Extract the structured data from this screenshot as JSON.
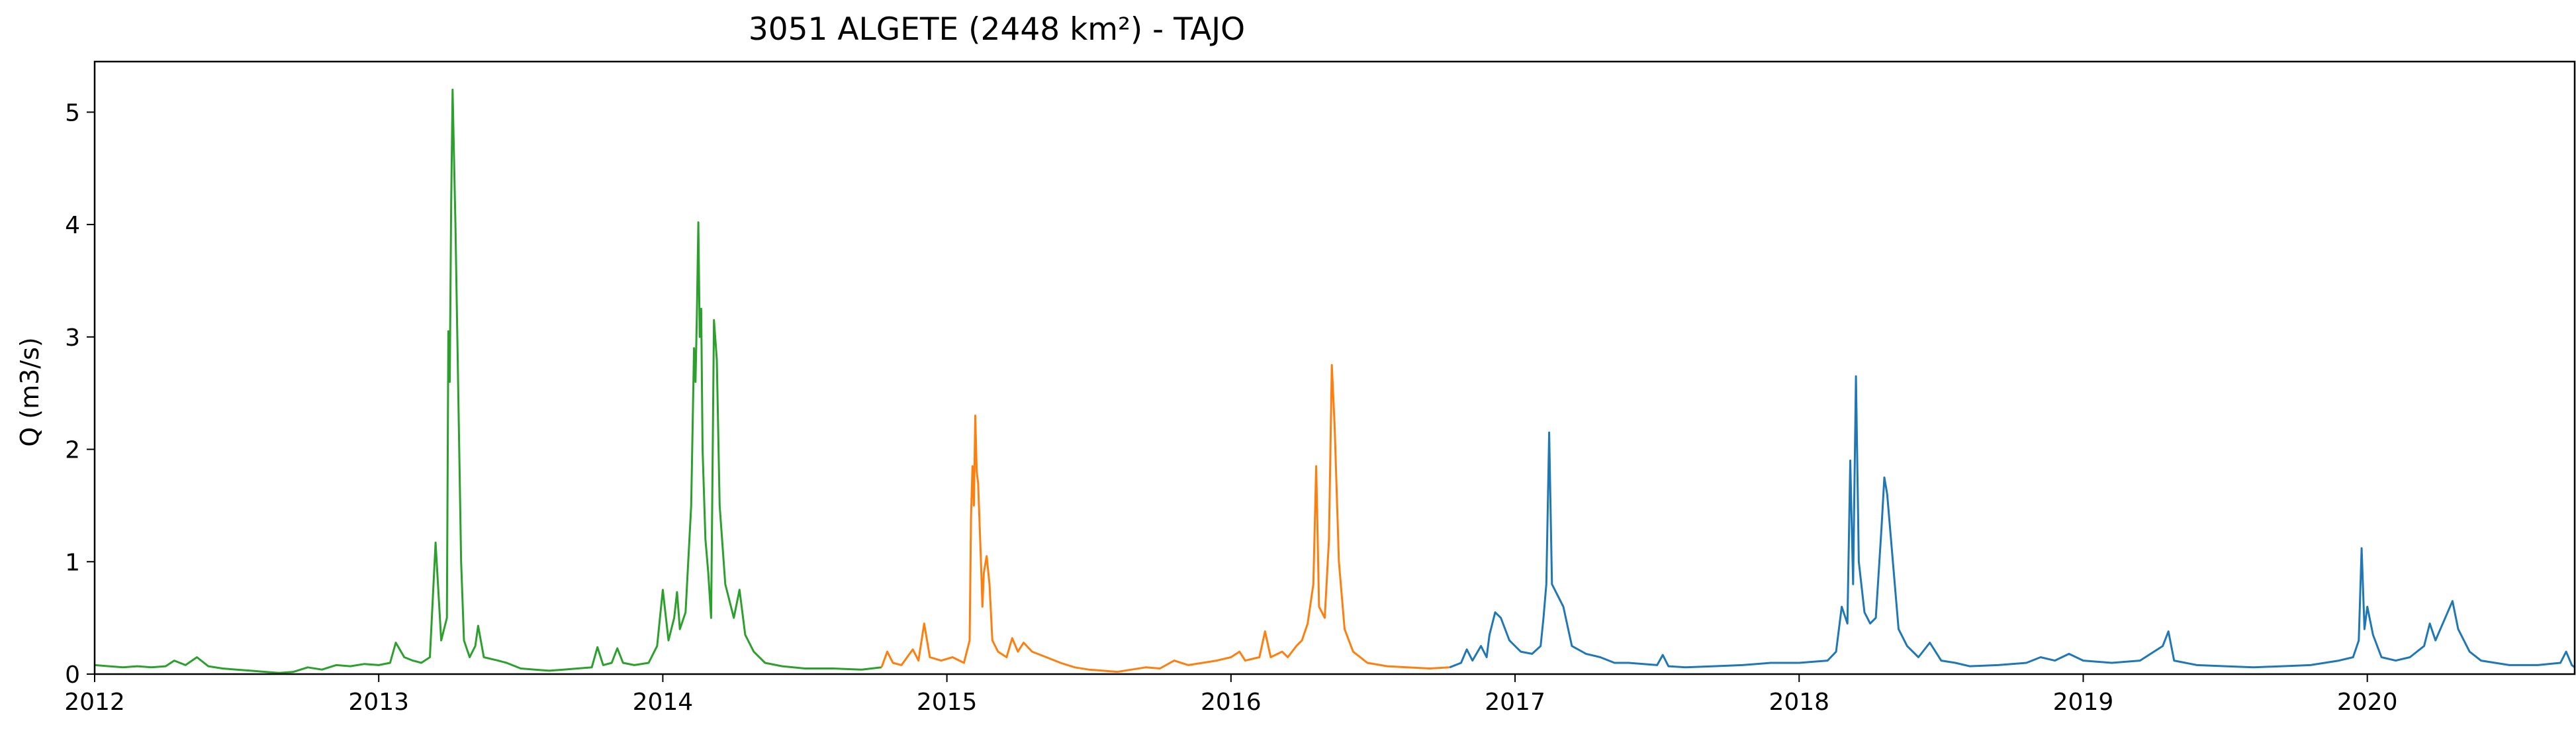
{
  "chart_data": {
    "type": "line",
    "title": "3051 ALGETE (2448 km²) - TAJO",
    "xlabel": "",
    "ylabel": "Q (m3/s)",
    "xlim": [
      2012.0,
      2020.73
    ],
    "ylim": [
      0,
      5.45
    ],
    "x_ticks": [
      2012,
      2013,
      2014,
      2015,
      2016,
      2017,
      2018,
      2019,
      2020
    ],
    "y_ticks": [
      0,
      1,
      2,
      3,
      4,
      5
    ],
    "grid": false,
    "legend": "none",
    "series": [
      {
        "color": "#2ca02c",
        "points": [
          [
            2012.0,
            0.08
          ],
          [
            2012.05,
            0.07
          ],
          [
            2012.1,
            0.06
          ],
          [
            2012.15,
            0.07
          ],
          [
            2012.2,
            0.06
          ],
          [
            2012.25,
            0.07
          ],
          [
            2012.28,
            0.12
          ],
          [
            2012.32,
            0.08
          ],
          [
            2012.36,
            0.15
          ],
          [
            2012.4,
            0.07
          ],
          [
            2012.45,
            0.05
          ],
          [
            2012.5,
            0.04
          ],
          [
            2012.55,
            0.03
          ],
          [
            2012.6,
            0.02
          ],
          [
            2012.65,
            0.01
          ],
          [
            2012.7,
            0.02
          ],
          [
            2012.75,
            0.06
          ],
          [
            2012.8,
            0.04
          ],
          [
            2012.85,
            0.08
          ],
          [
            2012.9,
            0.07
          ],
          [
            2012.95,
            0.09
          ],
          [
            2013.0,
            0.08
          ],
          [
            2013.04,
            0.1
          ],
          [
            2013.06,
            0.28
          ],
          [
            2013.09,
            0.15
          ],
          [
            2013.12,
            0.12
          ],
          [
            2013.15,
            0.1
          ],
          [
            2013.18,
            0.15
          ],
          [
            2013.2,
            1.17
          ],
          [
            2013.22,
            0.3
          ],
          [
            2013.24,
            0.5
          ],
          [
            2013.245,
            3.05
          ],
          [
            2013.25,
            2.6
          ],
          [
            2013.255,
            4.2
          ],
          [
            2013.26,
            5.2
          ],
          [
            2013.27,
            4.0
          ],
          [
            2013.28,
            2.5
          ],
          [
            2013.29,
            1.0
          ],
          [
            2013.3,
            0.3
          ],
          [
            2013.32,
            0.15
          ],
          [
            2013.34,
            0.25
          ],
          [
            2013.35,
            0.43
          ],
          [
            2013.37,
            0.15
          ],
          [
            2013.42,
            0.12
          ],
          [
            2013.45,
            0.1
          ],
          [
            2013.5,
            0.05
          ],
          [
            2013.55,
            0.04
          ],
          [
            2013.6,
            0.03
          ],
          [
            2013.65,
            0.04
          ],
          [
            2013.7,
            0.05
          ],
          [
            2013.75,
            0.06
          ],
          [
            2013.77,
            0.24
          ],
          [
            2013.79,
            0.08
          ],
          [
            2013.82,
            0.1
          ],
          [
            2013.84,
            0.23
          ],
          [
            2013.86,
            0.1
          ],
          [
            2013.9,
            0.08
          ],
          [
            2013.95,
            0.1
          ],
          [
            2013.98,
            0.25
          ],
          [
            2014.0,
            0.75
          ],
          [
            2014.02,
            0.3
          ],
          [
            2014.04,
            0.5
          ],
          [
            2014.05,
            0.73
          ],
          [
            2014.06,
            0.4
          ],
          [
            2014.08,
            0.55
          ],
          [
            2014.1,
            1.5
          ],
          [
            2014.11,
            2.9
          ],
          [
            2014.115,
            2.6
          ],
          [
            2014.12,
            3.2
          ],
          [
            2014.125,
            4.02
          ],
          [
            2014.13,
            3.0
          ],
          [
            2014.135,
            3.25
          ],
          [
            2014.14,
            2.0
          ],
          [
            2014.15,
            1.2
          ],
          [
            2014.16,
            0.9
          ],
          [
            2014.17,
            0.5
          ],
          [
            2014.18,
            3.15
          ],
          [
            2014.19,
            2.8
          ],
          [
            2014.2,
            1.5
          ],
          [
            2014.22,
            0.8
          ],
          [
            2014.25,
            0.5
          ],
          [
            2014.27,
            0.75
          ],
          [
            2014.29,
            0.35
          ],
          [
            2014.32,
            0.2
          ],
          [
            2014.36,
            0.1
          ],
          [
            2014.42,
            0.07
          ],
          [
            2014.5,
            0.05
          ],
          [
            2014.6,
            0.05
          ],
          [
            2014.7,
            0.04
          ],
          [
            2014.77,
            0.06
          ]
        ]
      },
      {
        "color": "#ff7f0e",
        "points": [
          [
            2014.77,
            0.06
          ],
          [
            2014.79,
            0.2
          ],
          [
            2014.81,
            0.1
          ],
          [
            2014.84,
            0.08
          ],
          [
            2014.88,
            0.22
          ],
          [
            2014.9,
            0.12
          ],
          [
            2014.92,
            0.45
          ],
          [
            2014.94,
            0.15
          ],
          [
            2014.98,
            0.12
          ],
          [
            2015.02,
            0.15
          ],
          [
            2015.06,
            0.1
          ],
          [
            2015.08,
            0.3
          ],
          [
            2015.085,
            1.4
          ],
          [
            2015.09,
            1.85
          ],
          [
            2015.095,
            1.5
          ],
          [
            2015.1,
            2.3
          ],
          [
            2015.105,
            1.8
          ],
          [
            2015.11,
            1.7
          ],
          [
            2015.12,
            1.0
          ],
          [
            2015.125,
            0.6
          ],
          [
            2015.13,
            0.9
          ],
          [
            2015.14,
            1.05
          ],
          [
            2015.15,
            0.8
          ],
          [
            2015.16,
            0.3
          ],
          [
            2015.18,
            0.2
          ],
          [
            2015.21,
            0.15
          ],
          [
            2015.23,
            0.32
          ],
          [
            2015.25,
            0.2
          ],
          [
            2015.27,
            0.28
          ],
          [
            2015.3,
            0.2
          ],
          [
            2015.35,
            0.15
          ],
          [
            2015.4,
            0.1
          ],
          [
            2015.45,
            0.06
          ],
          [
            2015.5,
            0.04
          ],
          [
            2015.55,
            0.03
          ],
          [
            2015.6,
            0.02
          ],
          [
            2015.65,
            0.04
          ],
          [
            2015.7,
            0.06
          ],
          [
            2015.75,
            0.05
          ],
          [
            2015.8,
            0.12
          ],
          [
            2015.85,
            0.08
          ],
          [
            2015.9,
            0.1
          ],
          [
            2015.95,
            0.12
          ],
          [
            2016.0,
            0.15
          ],
          [
            2016.03,
            0.2
          ],
          [
            2016.05,
            0.12
          ],
          [
            2016.1,
            0.15
          ],
          [
            2016.12,
            0.38
          ],
          [
            2016.14,
            0.15
          ],
          [
            2016.18,
            0.2
          ],
          [
            2016.2,
            0.15
          ],
          [
            2016.23,
            0.25
          ],
          [
            2016.25,
            0.3
          ],
          [
            2016.27,
            0.45
          ],
          [
            2016.29,
            0.8
          ],
          [
            2016.3,
            1.85
          ],
          [
            2016.31,
            0.6
          ],
          [
            2016.33,
            0.5
          ],
          [
            2016.345,
            1.2
          ],
          [
            2016.355,
            2.75
          ],
          [
            2016.365,
            2.2
          ],
          [
            2016.38,
            1.0
          ],
          [
            2016.4,
            0.4
          ],
          [
            2016.43,
            0.2
          ],
          [
            2016.48,
            0.1
          ],
          [
            2016.55,
            0.07
          ],
          [
            2016.62,
            0.06
          ],
          [
            2016.7,
            0.05
          ],
          [
            2016.77,
            0.06
          ]
        ]
      },
      {
        "color": "#1f77b4",
        "points": [
          [
            2016.77,
            0.06
          ],
          [
            2016.81,
            0.1
          ],
          [
            2016.83,
            0.22
          ],
          [
            2016.85,
            0.12
          ],
          [
            2016.88,
            0.25
          ],
          [
            2016.9,
            0.15
          ],
          [
            2016.91,
            0.35
          ],
          [
            2016.93,
            0.55
          ],
          [
            2016.95,
            0.5
          ],
          [
            2016.98,
            0.3
          ],
          [
            2017.02,
            0.2
          ],
          [
            2017.06,
            0.18
          ],
          [
            2017.09,
            0.25
          ],
          [
            2017.1,
            0.5
          ],
          [
            2017.11,
            0.8
          ],
          [
            2017.12,
            2.15
          ],
          [
            2017.13,
            0.8
          ],
          [
            2017.15,
            0.7
          ],
          [
            2017.17,
            0.6
          ],
          [
            2017.2,
            0.25
          ],
          [
            2017.25,
            0.18
          ],
          [
            2017.3,
            0.15
          ],
          [
            2017.35,
            0.1
          ],
          [
            2017.4,
            0.1
          ],
          [
            2017.5,
            0.08
          ],
          [
            2017.52,
            0.17
          ],
          [
            2017.54,
            0.07
          ],
          [
            2017.6,
            0.06
          ],
          [
            2017.7,
            0.07
          ],
          [
            2017.8,
            0.08
          ],
          [
            2017.9,
            0.1
          ],
          [
            2018.0,
            0.1
          ],
          [
            2018.1,
            0.12
          ],
          [
            2018.13,
            0.2
          ],
          [
            2018.15,
            0.6
          ],
          [
            2018.17,
            0.45
          ],
          [
            2018.18,
            1.9
          ],
          [
            2018.19,
            0.8
          ],
          [
            2018.2,
            2.65
          ],
          [
            2018.21,
            1.0
          ],
          [
            2018.23,
            0.55
          ],
          [
            2018.25,
            0.45
          ],
          [
            2018.27,
            0.5
          ],
          [
            2018.29,
            1.3
          ],
          [
            2018.3,
            1.75
          ],
          [
            2018.31,
            1.6
          ],
          [
            2018.33,
            1.0
          ],
          [
            2018.35,
            0.4
          ],
          [
            2018.38,
            0.25
          ],
          [
            2018.42,
            0.15
          ],
          [
            2018.46,
            0.28
          ],
          [
            2018.5,
            0.12
          ],
          [
            2018.55,
            0.1
          ],
          [
            2018.6,
            0.07
          ],
          [
            2018.7,
            0.08
          ],
          [
            2018.8,
            0.1
          ],
          [
            2018.85,
            0.15
          ],
          [
            2018.9,
            0.12
          ],
          [
            2018.95,
            0.18
          ],
          [
            2019.0,
            0.12
          ],
          [
            2019.1,
            0.1
          ],
          [
            2019.2,
            0.12
          ],
          [
            2019.28,
            0.25
          ],
          [
            2019.3,
            0.38
          ],
          [
            2019.32,
            0.12
          ],
          [
            2019.4,
            0.08
          ],
          [
            2019.5,
            0.07
          ],
          [
            2019.6,
            0.06
          ],
          [
            2019.7,
            0.07
          ],
          [
            2019.8,
            0.08
          ],
          [
            2019.9,
            0.12
          ],
          [
            2019.95,
            0.15
          ],
          [
            2019.97,
            0.3
          ],
          [
            2019.98,
            1.12
          ],
          [
            2019.99,
            0.4
          ],
          [
            2020.0,
            0.6
          ],
          [
            2020.02,
            0.35
          ],
          [
            2020.05,
            0.15
          ],
          [
            2020.1,
            0.12
          ],
          [
            2020.15,
            0.15
          ],
          [
            2020.2,
            0.25
          ],
          [
            2020.22,
            0.45
          ],
          [
            2020.24,
            0.3
          ],
          [
            2020.3,
            0.65
          ],
          [
            2020.32,
            0.4
          ],
          [
            2020.34,
            0.3
          ],
          [
            2020.36,
            0.2
          ],
          [
            2020.4,
            0.12
          ],
          [
            2020.5,
            0.08
          ],
          [
            2020.6,
            0.08
          ],
          [
            2020.68,
            0.1
          ],
          [
            2020.7,
            0.2
          ],
          [
            2020.72,
            0.08
          ],
          [
            2020.73,
            0.06
          ]
        ]
      }
    ]
  }
}
